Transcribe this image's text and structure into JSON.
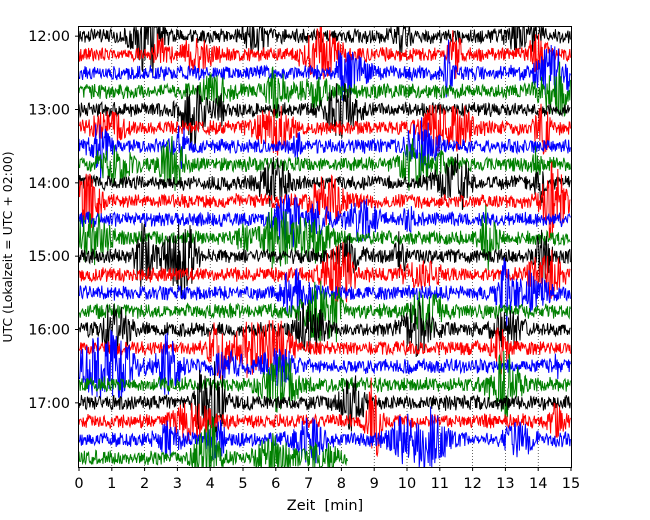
{
  "chart_data": {
    "type": "line",
    "description_kind": "helicorder",
    "xlabel": "Zeit  [min]",
    "ylabel": "UTC (Lokalzeit = UTC + 02:00)",
    "xlim": [
      0,
      15
    ],
    "x_ticks": [
      "0",
      "1",
      "2",
      "3",
      "4",
      "5",
      "6",
      "7",
      "8",
      "9",
      "10",
      "11",
      "12",
      "13",
      "14",
      "15"
    ],
    "y_ticks": [
      "12:00",
      "13:00",
      "14:00",
      "15:00",
      "16:00",
      "17:00"
    ],
    "start_utc": "12:00",
    "minutes_per_line": 15,
    "line_count": 24,
    "last_line_end_minute": 8.2,
    "colors": [
      "#000000",
      "#ff0000",
      "#0000ff",
      "#008000"
    ],
    "grid": "dotted vertical lines at each minute",
    "legend": "none",
    "series": [
      {
        "start": "12:00",
        "color": "#000000"
      },
      {
        "start": "12:15",
        "color": "#ff0000"
      },
      {
        "start": "12:30",
        "color": "#0000ff"
      },
      {
        "start": "12:45",
        "color": "#008000"
      },
      {
        "start": "13:00",
        "color": "#000000"
      },
      {
        "start": "13:15",
        "color": "#ff0000"
      },
      {
        "start": "13:30",
        "color": "#0000ff"
      },
      {
        "start": "13:45",
        "color": "#008000"
      },
      {
        "start": "14:00",
        "color": "#000000"
      },
      {
        "start": "14:15",
        "color": "#ff0000"
      },
      {
        "start": "14:30",
        "color": "#0000ff"
      },
      {
        "start": "14:45",
        "color": "#008000"
      },
      {
        "start": "15:00",
        "color": "#000000"
      },
      {
        "start": "15:15",
        "color": "#ff0000"
      },
      {
        "start": "15:30",
        "color": "#0000ff"
      },
      {
        "start": "15:45",
        "color": "#008000"
      },
      {
        "start": "16:00",
        "color": "#000000"
      },
      {
        "start": "16:15",
        "color": "#ff0000"
      },
      {
        "start": "16:30",
        "color": "#0000ff"
      },
      {
        "start": "16:45",
        "color": "#008000"
      },
      {
        "start": "17:00",
        "color": "#000000"
      },
      {
        "start": "17:15",
        "color": "#ff0000"
      },
      {
        "start": "17:30",
        "color": "#0000ff"
      },
      {
        "start": "17:45",
        "color": "#008000"
      }
    ]
  }
}
